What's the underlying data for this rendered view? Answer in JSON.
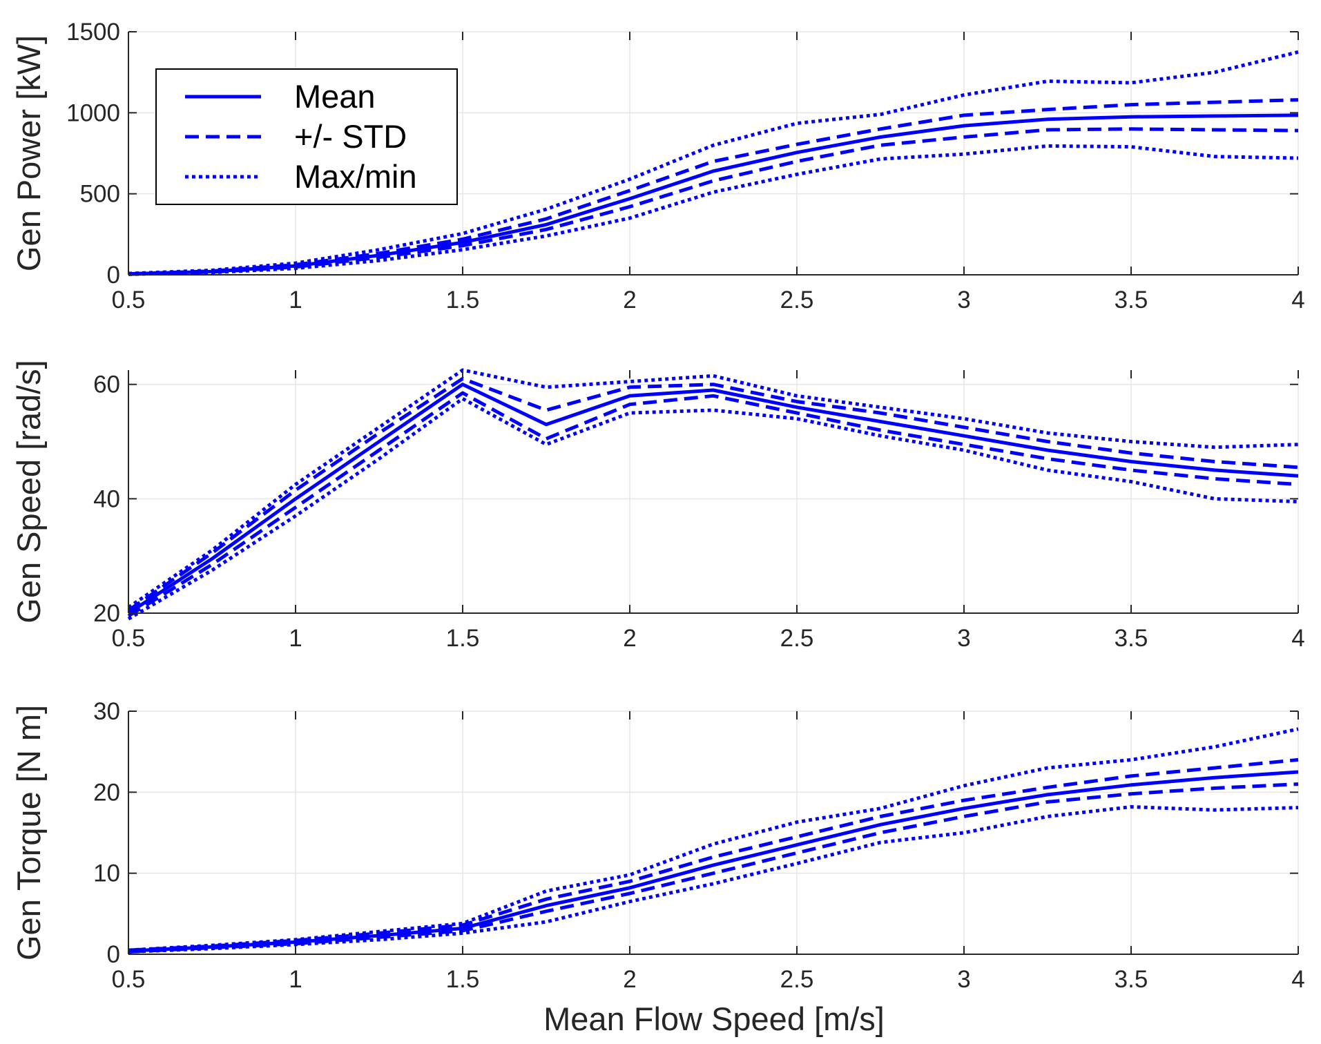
{
  "colors": {
    "series": "#0000ff",
    "grid": "#e6e6e6",
    "axis": "#262626",
    "legend_border": "#000000"
  },
  "xlabel": "Mean Flow Speed [m/s]",
  "legend": {
    "placement": "top-left of top panel",
    "entries": [
      {
        "label": "Mean",
        "style": "solid"
      },
      {
        "label": "+/- STD",
        "style": "dashed"
      },
      {
        "label": "Max/min",
        "style": "dotted"
      }
    ]
  },
  "chart_data": [
    {
      "type": "line",
      "ylabel": "Gen Power [kW]",
      "xlim": [
        0.5,
        4
      ],
      "ylim": [
        0,
        1500
      ],
      "xticks": [
        "0.5",
        "1",
        "1.5",
        "2",
        "2.5",
        "3",
        "3.5",
        "4"
      ],
      "yticks": [
        "0",
        "500",
        "1000",
        "1500"
      ],
      "grid": true,
      "x": [
        0.5,
        0.75,
        1.0,
        1.25,
        1.5,
        1.75,
        2.0,
        2.25,
        2.5,
        2.75,
        3.0,
        3.25,
        3.5,
        3.75,
        4.0
      ],
      "series": [
        {
          "name": "Mean",
          "style": "solid",
          "values": [
            5,
            20,
            55,
            120,
            200,
            310,
            470,
            640,
            755,
            850,
            920,
            960,
            975,
            980,
            985
          ]
        },
        {
          "style": "dashed",
          "values": [
            6,
            23,
            62,
            132,
            220,
            345,
            520,
            700,
            805,
            900,
            985,
            1020,
            1050,
            1065,
            1080
          ]
        },
        {
          "style": "dashed",
          "values": [
            4,
            17,
            48,
            108,
            180,
            280,
            420,
            580,
            700,
            800,
            850,
            895,
            900,
            895,
            890
          ]
        },
        {
          "style": "dotted",
          "values": [
            8,
            28,
            72,
            155,
            255,
            405,
            590,
            800,
            935,
            990,
            1110,
            1195,
            1185,
            1250,
            1375
          ]
        },
        {
          "style": "dotted",
          "values": [
            3,
            14,
            40,
            88,
            155,
            240,
            350,
            510,
            620,
            715,
            745,
            795,
            790,
            730,
            720
          ]
        }
      ]
    },
    {
      "type": "line",
      "ylabel": "Gen Speed [rad/s]",
      "xlim": [
        0.5,
        4
      ],
      "ylim": [
        20,
        62.5
      ],
      "xticks": [
        "0.5",
        "1",
        "1.5",
        "2",
        "2.5",
        "3",
        "3.5",
        "4"
      ],
      "yticks": [
        "20",
        "40",
        "60"
      ],
      "grid": true,
      "x": [
        0.5,
        0.75,
        1.0,
        1.25,
        1.5,
        1.75,
        2.0,
        2.25,
        2.5,
        2.75,
        3.0,
        3.25,
        3.5,
        3.75,
        4.0
      ],
      "series": [
        {
          "name": "Mean",
          "style": "solid",
          "values": [
            20,
            29.5,
            40,
            50,
            60,
            53,
            58,
            59,
            56,
            53.5,
            51,
            48.5,
            46.5,
            45,
            44
          ]
        },
        {
          "style": "dashed",
          "values": [
            20.5,
            30.5,
            41.5,
            51.5,
            61,
            55.5,
            59.5,
            60,
            57,
            55,
            52.5,
            50,
            48,
            46.5,
            45.5
          ]
        },
        {
          "style": "dashed",
          "values": [
            19.5,
            28.5,
            38.5,
            48.5,
            58.5,
            50.5,
            56.5,
            58,
            55,
            52,
            49.5,
            47,
            45,
            43.5,
            42.5
          ]
        },
        {
          "style": "dotted",
          "values": [
            21,
            31,
            42.5,
            52.5,
            62.5,
            59.5,
            60.5,
            61.5,
            58,
            56,
            54,
            51.5,
            50,
            49,
            49.5
          ]
        },
        {
          "style": "dotted",
          "values": [
            19,
            27.5,
            37,
            47,
            57.5,
            49.5,
            55,
            55.5,
            54,
            51,
            48.5,
            45,
            43,
            40,
            39.5
          ]
        }
      ]
    },
    {
      "type": "line",
      "ylabel": "Gen Torque [N m]",
      "xlim": [
        0.5,
        4
      ],
      "ylim": [
        0,
        30
      ],
      "xticks": [
        "0.5",
        "1",
        "1.5",
        "2",
        "2.5",
        "3",
        "3.5",
        "4"
      ],
      "yticks": [
        "0",
        "10",
        "20",
        "30"
      ],
      "grid": true,
      "x": [
        0.5,
        0.75,
        1.0,
        1.25,
        1.5,
        1.75,
        2.0,
        2.25,
        2.5,
        2.75,
        3.0,
        3.25,
        3.5,
        3.75,
        4.0
      ],
      "series": [
        {
          "name": "Mean",
          "style": "solid",
          "values": [
            0.4,
            0.9,
            1.5,
            2.3,
            3.2,
            6.0,
            8.2,
            11.0,
            13.5,
            16.0,
            18.0,
            19.7,
            20.9,
            21.8,
            22.5
          ]
        },
        {
          "style": "dashed",
          "values": [
            0.5,
            1.0,
            1.7,
            2.6,
            3.6,
            6.8,
            9.0,
            12.0,
            14.5,
            17.0,
            19.0,
            20.6,
            22.0,
            23.0,
            24.0
          ]
        },
        {
          "style": "dashed",
          "values": [
            0.3,
            0.8,
            1.3,
            2.1,
            2.9,
            5.3,
            7.5,
            10.0,
            12.5,
            15.0,
            17.0,
            18.8,
            19.8,
            20.5,
            21.0
          ]
        },
        {
          "style": "dotted",
          "values": [
            0.5,
            1.1,
            1.8,
            2.8,
            3.8,
            7.8,
            9.8,
            13.6,
            16.3,
            18.0,
            20.8,
            23.0,
            24.0,
            25.6,
            27.8
          ]
        },
        {
          "style": "dotted",
          "values": [
            0.3,
            0.7,
            1.2,
            1.8,
            2.6,
            4.0,
            6.5,
            8.7,
            11.2,
            13.8,
            15.0,
            17.0,
            18.2,
            17.8,
            18.1
          ]
        }
      ]
    }
  ]
}
